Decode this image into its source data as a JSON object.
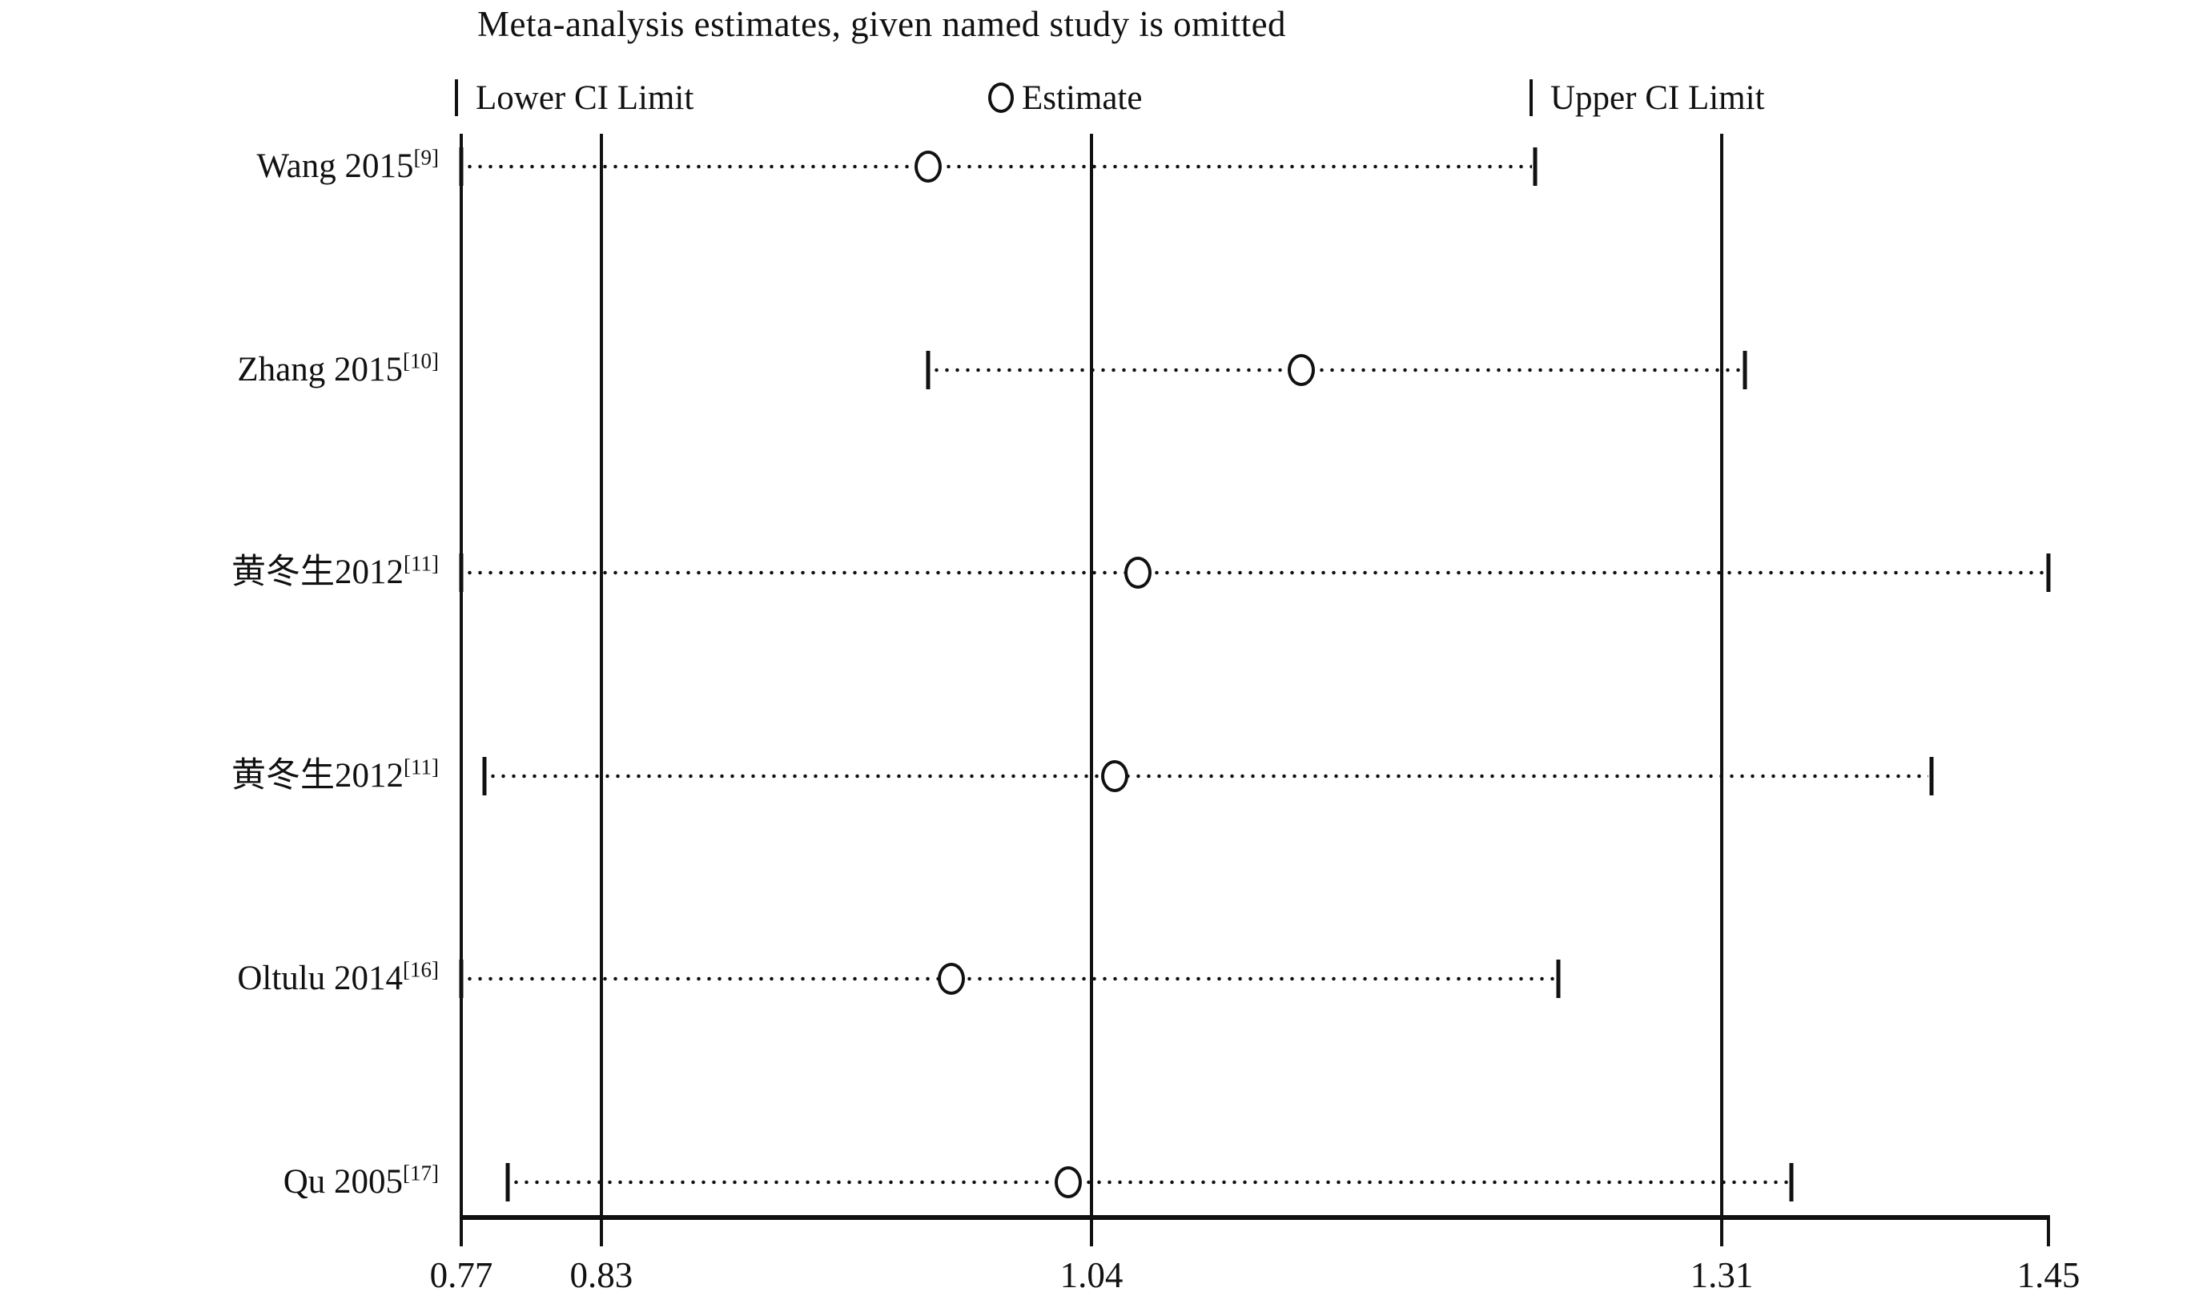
{
  "page": {
    "background": "#ffffff",
    "ink": "#111111"
  },
  "title": "Meta-analysis estimates, given named study is omitted",
  "legend": {
    "lower_label": "Lower CI Limit",
    "estimate_label": "Estimate",
    "upper_label": "Upper CI Limit"
  },
  "chart_data": {
    "type": "scatter",
    "subtype": "leave-one-out sensitivity forest plot",
    "title": "Meta-analysis estimates, given named study is omitted",
    "xlabel": "",
    "ylabel": "",
    "grid": false,
    "legend_entries": [
      "Lower CI Limit",
      "Estimate",
      "Upper CI Limit"
    ],
    "legend_position": "top",
    "x_range": [
      0.77,
      1.45
    ],
    "x_ticks": [
      0.77,
      0.83,
      1.04,
      1.31,
      1.45
    ],
    "x_tick_labels": [
      "0.77",
      "0.83",
      "1.04",
      "1.31",
      "1.45"
    ],
    "reference_lines": [
      0.83,
      1.04,
      1.31
    ],
    "studies": [
      {
        "label": "Wang 2015",
        "ref": "[9]",
        "lower": 0.77,
        "estimate": 0.97,
        "upper": 1.23
      },
      {
        "label": "Zhang 2015",
        "ref": "[10]",
        "lower": 0.97,
        "estimate": 1.13,
        "upper": 1.32
      },
      {
        "label": "黄冬生2012",
        "ref": "[11]",
        "lower": 0.77,
        "estimate": 1.06,
        "upper": 1.45
      },
      {
        "label": "黄冬生2012",
        "ref": "[11]",
        "lower": 0.78,
        "estimate": 1.05,
        "upper": 1.4
      },
      {
        "label": "Oltulu 2014",
        "ref": "[16]",
        "lower": 0.77,
        "estimate": 0.98,
        "upper": 1.24
      },
      {
        "label": "Qu 2005",
        "ref": "[17]",
        "lower": 0.79,
        "estimate": 1.03,
        "upper": 1.34
      }
    ]
  }
}
